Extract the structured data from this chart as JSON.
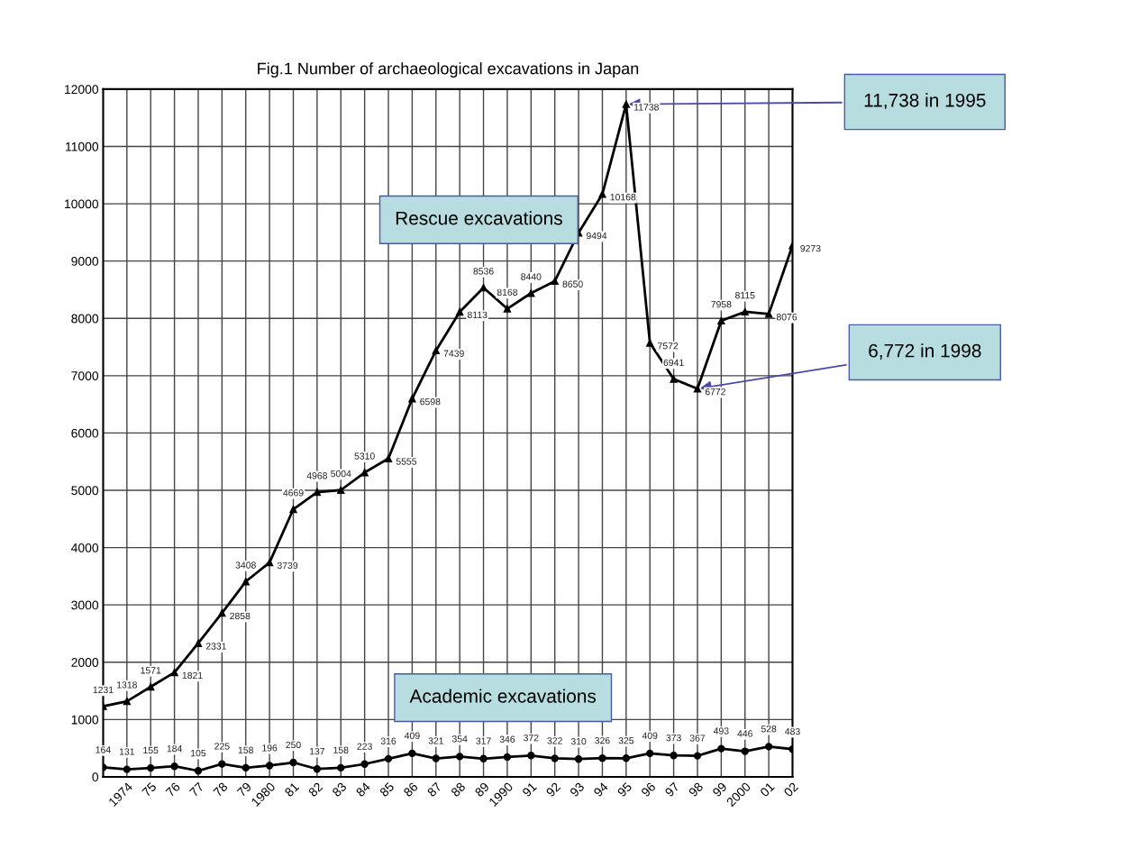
{
  "chart_data": {
    "type": "line",
    "title": "Fig.1 Number of archaeological excavations in Japan",
    "x": [
      1973,
      1974,
      1975,
      1976,
      1977,
      1978,
      1979,
      1980,
      1981,
      1982,
      1983,
      1984,
      1985,
      1986,
      1987,
      1988,
      1989,
      1990,
      1991,
      1992,
      1993,
      1994,
      1995,
      1996,
      1997,
      1998,
      1999,
      2000,
      2001,
      2002
    ],
    "series": [
      {
        "name": "Rescue excavations",
        "color": "#000000",
        "marker": "triangle",
        "values": [
          1231,
          1318,
          1571,
          1821,
          2331,
          2858,
          3408,
          3739,
          4669,
          4968,
          5004,
          5310,
          5555,
          6598,
          7439,
          8113,
          8536,
          8168,
          8440,
          8650,
          9494,
          10168,
          11738,
          7572,
          6941,
          6772,
          7958,
          8115,
          8076,
          9273
        ]
      },
      {
        "name": "Academic excavations",
        "color": "#000000",
        "marker": "circle",
        "values": [
          164,
          131,
          155,
          184,
          105,
          225,
          158,
          196,
          250,
          137,
          158,
          223,
          316,
          409,
          321,
          354,
          317,
          346,
          372,
          322,
          310,
          326,
          325,
          409,
          373,
          367,
          493,
          446,
          528,
          483
        ]
      }
    ],
    "data_labels": true,
    "xlim": [
      1973,
      2002
    ],
    "xticks": [
      {
        "value": 1973,
        "label": null
      },
      {
        "value": 1974,
        "label": "1974"
      },
      {
        "value": 1975,
        "label": "75"
      },
      {
        "value": 1976,
        "label": "76"
      },
      {
        "value": 1977,
        "label": "77"
      },
      {
        "value": 1978,
        "label": "78"
      },
      {
        "value": 1979,
        "label": "79"
      },
      {
        "value": 1980,
        "label": "1980"
      },
      {
        "value": 1981,
        "label": "81"
      },
      {
        "value": 1982,
        "label": "82"
      },
      {
        "value": 1983,
        "label": "83"
      },
      {
        "value": 1984,
        "label": "84"
      },
      {
        "value": 1985,
        "label": "85"
      },
      {
        "value": 1986,
        "label": "86"
      },
      {
        "value": 1987,
        "label": "87"
      },
      {
        "value": 1988,
        "label": "88"
      },
      {
        "value": 1989,
        "label": "89"
      },
      {
        "value": 1990,
        "label": "1990"
      },
      {
        "value": 1991,
        "label": "91"
      },
      {
        "value": 1992,
        "label": "92"
      },
      {
        "value": 1993,
        "label": "93"
      },
      {
        "value": 1994,
        "label": "94"
      },
      {
        "value": 1995,
        "label": "95"
      },
      {
        "value": 1996,
        "label": "96"
      },
      {
        "value": 1997,
        "label": "97"
      },
      {
        "value": 1998,
        "label": "98"
      },
      {
        "value": 1999,
        "label": "99"
      },
      {
        "value": 2000,
        "label": "2000"
      },
      {
        "value": 2001,
        "label": "01"
      },
      {
        "value": 2002,
        "label": "02"
      }
    ],
    "ylim": [
      0,
      12000
    ],
    "yticks": [
      0,
      1000,
      2000,
      3000,
      4000,
      5000,
      6000,
      7000,
      8000,
      9000,
      10000,
      11000,
      12000
    ],
    "grid": true,
    "legend": false,
    "annotations": [
      {
        "text": "11,738 in 1995",
        "x": 1995,
        "y": 11738
      },
      {
        "text": "6,772 in 1998",
        "x": 1998,
        "y": 6772
      }
    ]
  }
}
